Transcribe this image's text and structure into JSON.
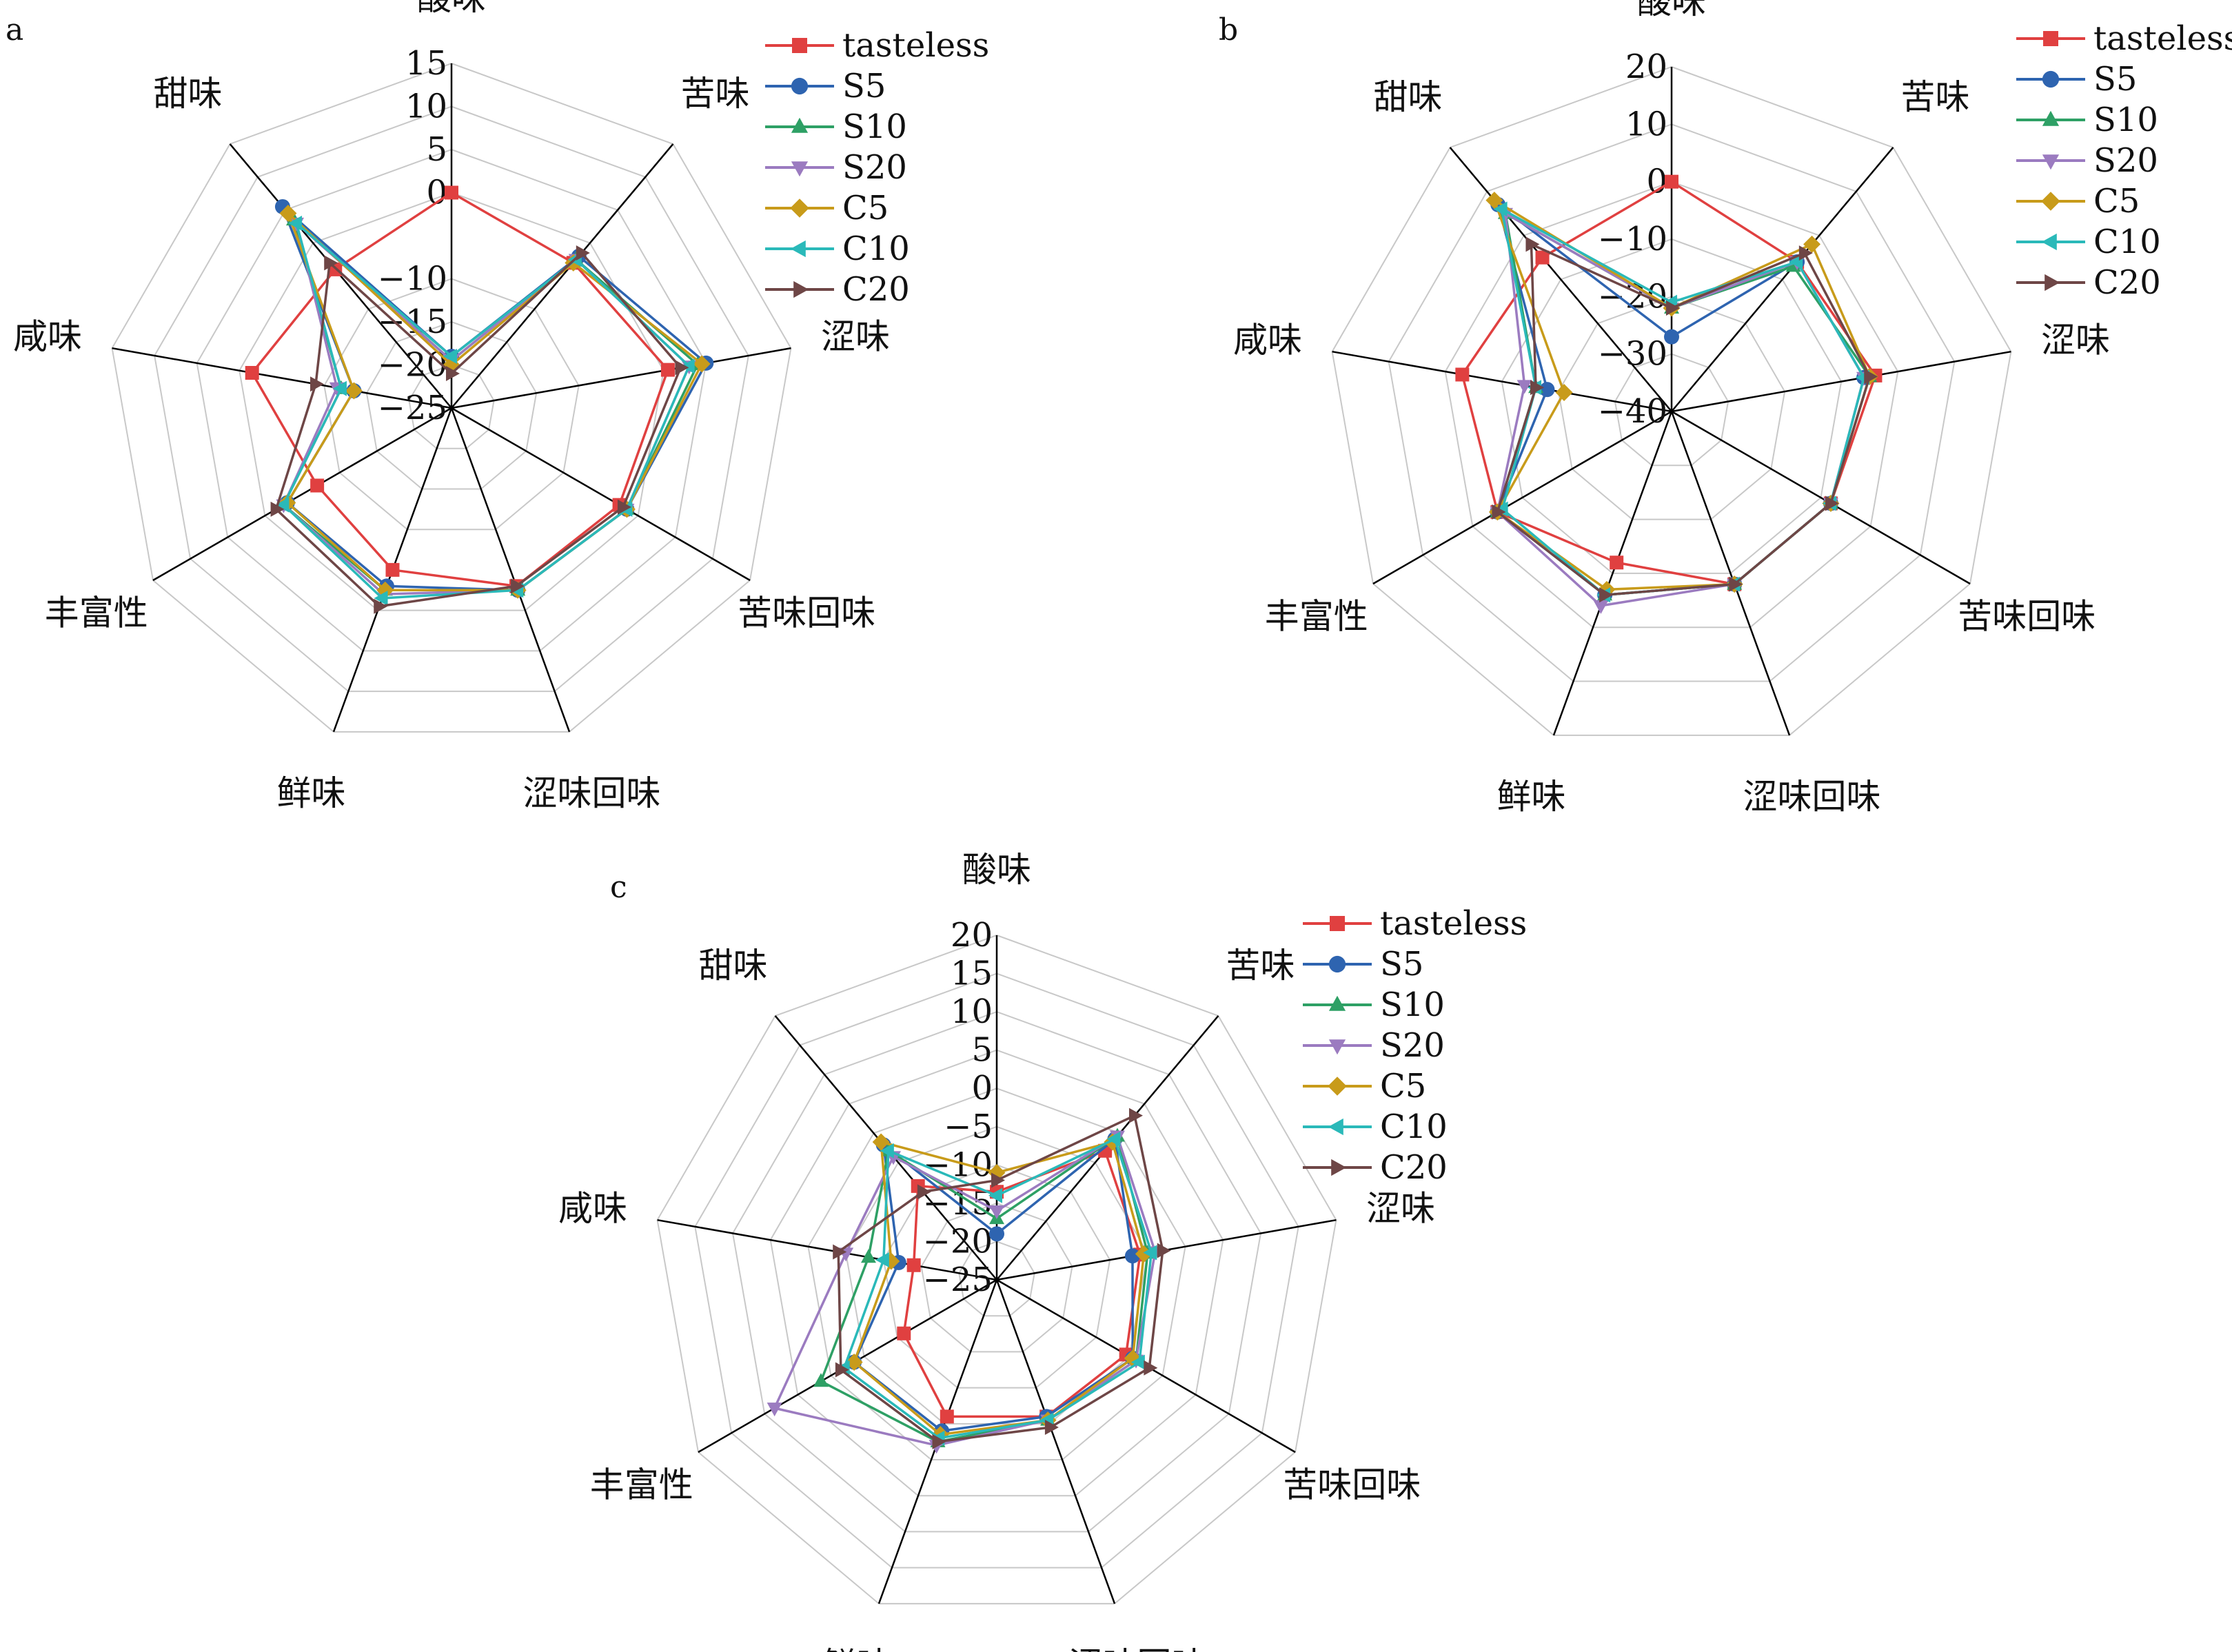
{
  "chart_data": [
    {
      "type": "radar",
      "panel_label": "a",
      "axes": [
        "酸味",
        "苦味",
        "涩味",
        "苦味回味",
        "涩味回味",
        "鲜味",
        "丰富性",
        "咸味",
        "甜味"
      ],
      "ticks": [
        15,
        10,
        5,
        0,
        -10,
        -15,
        -20,
        -25
      ],
      "tick_labels": [
        "15",
        "10",
        "5",
        "0",
        "−10",
        "−15",
        "−20",
        "−25"
      ],
      "range": [
        -25,
        15
      ],
      "legend_position": "top-right",
      "series": [
        {
          "name": "tasteless",
          "values": [
            0,
            -3,
            0.5,
            -2.5,
            -3,
            -5,
            -7,
            -1.5,
            -4
          ]
        },
        {
          "name": "S5",
          "values": [
            -19,
            -2,
            5,
            -1.5,
            -2.5,
            -3,
            -3,
            -13.5,
            5.5
          ]
        },
        {
          "name": "S10",
          "values": [
            -19.5,
            -2.5,
            4,
            -1.5,
            -2.5,
            -2.5,
            -2.5,
            -12,
            3.5
          ]
        },
        {
          "name": "S20",
          "values": [
            -19.5,
            -2.5,
            3,
            -1.5,
            -2.5,
            -2,
            -2.5,
            -11.5,
            3
          ]
        },
        {
          "name": "C5",
          "values": [
            -20,
            -3,
            4.5,
            -1.5,
            -2.5,
            -2.5,
            -3,
            -13.5,
            4.5
          ]
        },
        {
          "name": "C10",
          "values": [
            -19,
            -2.5,
            3,
            -1.5,
            -2.5,
            -1.5,
            -2.5,
            -12,
            3
          ]
        },
        {
          "name": "C20",
          "values": [
            -21,
            -1.5,
            2,
            -2,
            -3,
            -0.5,
            -1.5,
            -9,
            -3
          ]
        }
      ]
    },
    {
      "type": "radar",
      "panel_label": "b",
      "axes": [
        "酸味",
        "苦味",
        "涩味",
        "苦味回味",
        "涩味回味",
        "鲜味",
        "丰富性",
        "咸味",
        "甜味"
      ],
      "ticks": [
        20,
        10,
        0,
        -10,
        -20,
        -30,
        -40
      ],
      "tick_labels": [
        "20",
        "10",
        "0",
        "−10",
        "−20",
        "−30",
        "−40"
      ],
      "range": [
        -40,
        20
      ],
      "legend_position": "top-right",
      "series": [
        {
          "name": "tasteless",
          "values": [
            0,
            -6,
            -4,
            -8,
            -8,
            -12,
            -5,
            -3,
            -5
          ]
        },
        {
          "name": "S5",
          "values": [
            -27,
            -6,
            -6,
            -8,
            -8,
            -6,
            -5,
            -18,
            7
          ]
        },
        {
          "name": "S10",
          "values": [
            -22,
            -7,
            -5,
            -8,
            -8,
            -6,
            -5,
            -16,
            5
          ]
        },
        {
          "name": "S20",
          "values": [
            -22,
            -6,
            -6,
            -8,
            -8,
            -4,
            -5,
            -14,
            5
          ]
        },
        {
          "name": "C5",
          "values": [
            -22,
            -2,
            -5,
            -8,
            -8,
            -7,
            -5,
            -21,
            8
          ]
        },
        {
          "name": "C10",
          "values": [
            -21,
            -6,
            -6,
            -8,
            -8,
            -6,
            -6,
            -16,
            6
          ]
        },
        {
          "name": "C20",
          "values": [
            -22,
            -4,
            -5,
            -8,
            -8,
            -6,
            -5,
            -16,
            -2
          ]
        }
      ]
    },
    {
      "type": "radar",
      "panel_label": "c",
      "axes": [
        "酸味",
        "苦味",
        "涩味",
        "苦味回味",
        "涩味回味",
        "鲜味",
        "丰富性",
        "咸味",
        "甜味"
      ],
      "ticks": [
        20,
        15,
        10,
        5,
        0,
        -5,
        -10,
        -15,
        -20,
        -25
      ],
      "tick_labels": [
        "20",
        "15",
        "10",
        "5",
        "0",
        "−5",
        "−10",
        "−15",
        "−20",
        "−25"
      ],
      "range": [
        -25,
        20
      ],
      "legend_position": "top-right",
      "series": [
        {
          "name": "tasteless",
          "values": [
            -13.5,
            -3,
            -6,
            -5.5,
            -6,
            -6,
            -11,
            -14,
            -9
          ]
        },
        {
          "name": "S5",
          "values": [
            -19,
            -1,
            -7,
            -4.5,
            -6,
            -4,
            -3.5,
            -12,
            -2
          ]
        },
        {
          "name": "S10",
          "values": [
            -17,
            -0.5,
            -5,
            -4,
            -5.5,
            -2.5,
            1.5,
            -8,
            -3
          ]
        },
        {
          "name": "S20",
          "values": [
            -16,
            -0.5,
            -4,
            -4,
            -5.5,
            -2,
            8.5,
            -5,
            -4
          ]
        },
        {
          "name": "C5",
          "values": [
            -11,
            -1.5,
            -5.5,
            -4.5,
            -5.5,
            -3.5,
            -3.5,
            -11,
            -1.5
          ]
        },
        {
          "name": "C10",
          "values": [
            -14,
            -1,
            -4.5,
            -3.5,
            -5.5,
            -3,
            -2,
            -10,
            -3
          ]
        },
        {
          "name": "C20",
          "values": [
            -12,
            3,
            -3,
            -2,
            -4.5,
            -2.5,
            -1.5,
            -4,
            -10
          ]
        }
      ]
    }
  ],
  "series_styles": [
    {
      "color": "#e04040",
      "marker": "square"
    },
    {
      "color": "#2e64b0",
      "marker": "circle"
    },
    {
      "color": "#2ea065",
      "marker": "triangle-up"
    },
    {
      "color": "#9b7bc0",
      "marker": "triangle-down"
    },
    {
      "color": "#c89b1a",
      "marker": "diamond"
    },
    {
      "color": "#2ab9b9",
      "marker": "triangle-left"
    },
    {
      "color": "#6e4646",
      "marker": "triangle-right"
    }
  ]
}
